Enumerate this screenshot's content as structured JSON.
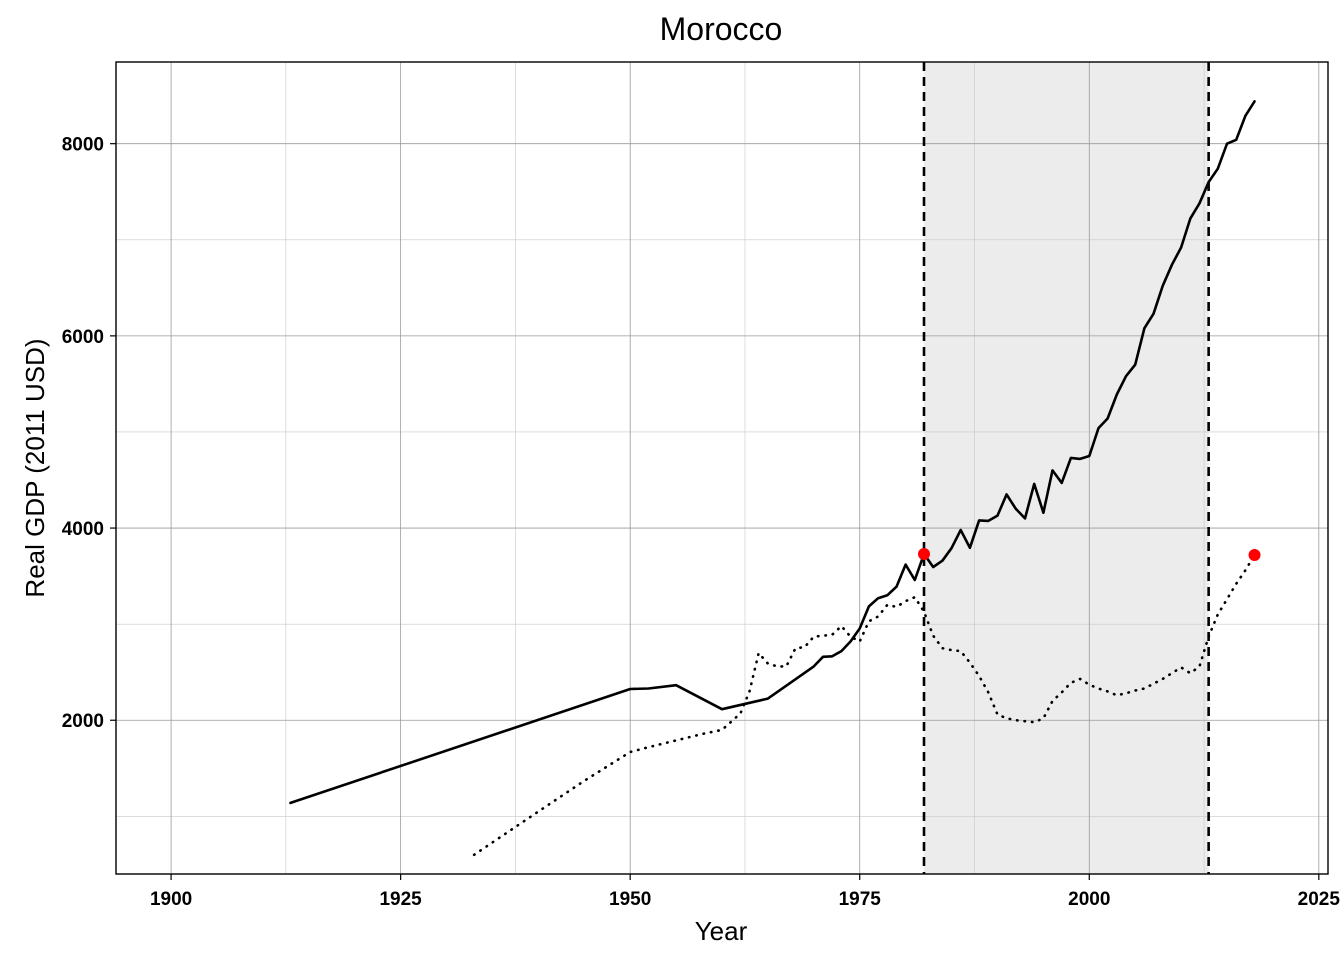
{
  "chart_data": {
    "type": "line",
    "title": "Morocco",
    "xlabel": "Year",
    "ylabel": "Real GDP (2011 USD)",
    "xlim": [
      1894,
      2026
    ],
    "ylim": [
      400,
      8850
    ],
    "x_ticks": [
      1900,
      1925,
      1950,
      1975,
      2000,
      2025
    ],
    "y_ticks": [
      2000,
      4000,
      6000,
      8000
    ],
    "x_minor_ticks": [
      1912.5,
      1937.5,
      1962.5,
      1987.5,
      2012.5
    ],
    "y_minor_ticks": [
      1000,
      3000,
      5000,
      7000
    ],
    "grid": true,
    "legend": "none",
    "shaded_region": {
      "x_start": 1982,
      "x_end": 2013,
      "color": "#ececec"
    },
    "vlines": [
      1982,
      2013
    ],
    "series": [
      {
        "style": "solid",
        "color": "#000000",
        "x": [
          1913,
          1950,
          1952,
          1955,
          1960,
          1965,
          1970,
          1971,
          1972,
          1973,
          1974,
          1975,
          1976,
          1977,
          1978,
          1979,
          1980,
          1981,
          1982,
          1983,
          1984,
          1985,
          1986,
          1987,
          1988,
          1989,
          1990,
          1991,
          1992,
          1993,
          1994,
          1995,
          1996,
          1997,
          1998,
          1999,
          2000,
          2001,
          2002,
          2003,
          2004,
          2005,
          2006,
          2007,
          2008,
          2009,
          2010,
          2011,
          2012,
          2013,
          2014,
          2015,
          2016,
          2017,
          2018
        ],
        "y": [
          1140,
          2325,
          2330,
          2365,
          2115,
          2225,
          2560,
          2660,
          2665,
          2720,
          2820,
          2955,
          3185,
          3270,
          3300,
          3390,
          3620,
          3460,
          3730,
          3595,
          3660,
          3790,
          3980,
          3795,
          4080,
          4075,
          4130,
          4350,
          4200,
          4100,
          4460,
          4160,
          4600,
          4470,
          4730,
          4720,
          4750,
          5040,
          5140,
          5390,
          5580,
          5700,
          6080,
          6230,
          6520,
          6740,
          6920,
          7220,
          7380,
          7600,
          7740,
          8000,
          8040,
          8290,
          8440
        ]
      },
      {
        "style": "dotted",
        "color": "#000000",
        "x": [
          1933,
          1940,
          1945,
          1950,
          1952,
          1955,
          1958,
          1960,
          1962,
          1963,
          1964,
          1965,
          1966,
          1967,
          1968,
          1969,
          1970,
          1971,
          1972,
          1973,
          1974,
          1975,
          1976,
          1977,
          1978,
          1979,
          1980,
          1981,
          1982,
          1983,
          1984,
          1985,
          1986,
          1987,
          1988,
          1989,
          1990,
          1991,
          1992,
          1993,
          1994,
          1995,
          1996,
          1997,
          1998,
          1999,
          2000,
          2001,
          2002,
          2003,
          2004,
          2005,
          2006,
          2007,
          2008,
          2009,
          2010,
          2011,
          2012,
          2013,
          2014,
          2015,
          2016,
          2017,
          2018
        ],
        "y": [
          600,
          1050,
          1370,
          1670,
          1720,
          1790,
          1860,
          1900,
          2070,
          2300,
          2700,
          2590,
          2560,
          2560,
          2750,
          2760,
          2870,
          2880,
          2890,
          2980,
          2870,
          2820,
          3030,
          3080,
          3200,
          3180,
          3240,
          3280,
          3130,
          2880,
          2750,
          2730,
          2720,
          2600,
          2460,
          2290,
          2060,
          2020,
          2000,
          1990,
          1980,
          2020,
          2200,
          2290,
          2390,
          2430,
          2370,
          2330,
          2300,
          2260,
          2280,
          2310,
          2330,
          2380,
          2430,
          2490,
          2550,
          2490,
          2560,
          2870,
          3100,
          3260,
          3420,
          3560,
          3720
        ]
      }
    ],
    "markers": [
      {
        "x": 1982,
        "y": 3730,
        "color": "#ff0000"
      },
      {
        "x": 2018,
        "y": 3720,
        "color": "#ff0000"
      }
    ]
  }
}
